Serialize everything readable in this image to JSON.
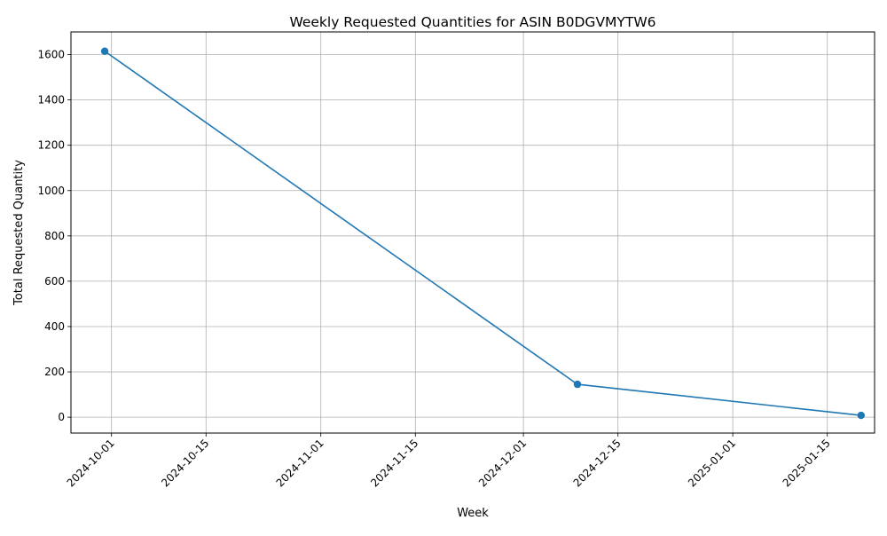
{
  "chart_data": {
    "type": "line",
    "title": "Weekly Requested Quantities for ASIN B0DGVMYTW6",
    "xlabel": "Week",
    "ylabel": "Total Requested Quantity",
    "x_type": "date",
    "xlim": [
      "2024-09-25",
      "2025-01-22"
    ],
    "ylim": [
      -70,
      1700
    ],
    "x_ticks": [
      "2024-10-01",
      "2024-10-15",
      "2024-11-01",
      "2024-11-15",
      "2024-12-01",
      "2024-12-15",
      "2025-01-01",
      "2025-01-15"
    ],
    "y_ticks": [
      0,
      200,
      400,
      600,
      800,
      1000,
      1200,
      1400,
      1600
    ],
    "grid": true,
    "x_tick_rotation": 45,
    "series": [
      {
        "color": "#1f77b4",
        "marker": "circle",
        "points": [
          {
            "x": "2024-09-30",
            "y": 1615
          },
          {
            "x": "2024-12-09",
            "y": 145
          },
          {
            "x": "2025-01-20",
            "y": 8
          }
        ]
      }
    ]
  }
}
